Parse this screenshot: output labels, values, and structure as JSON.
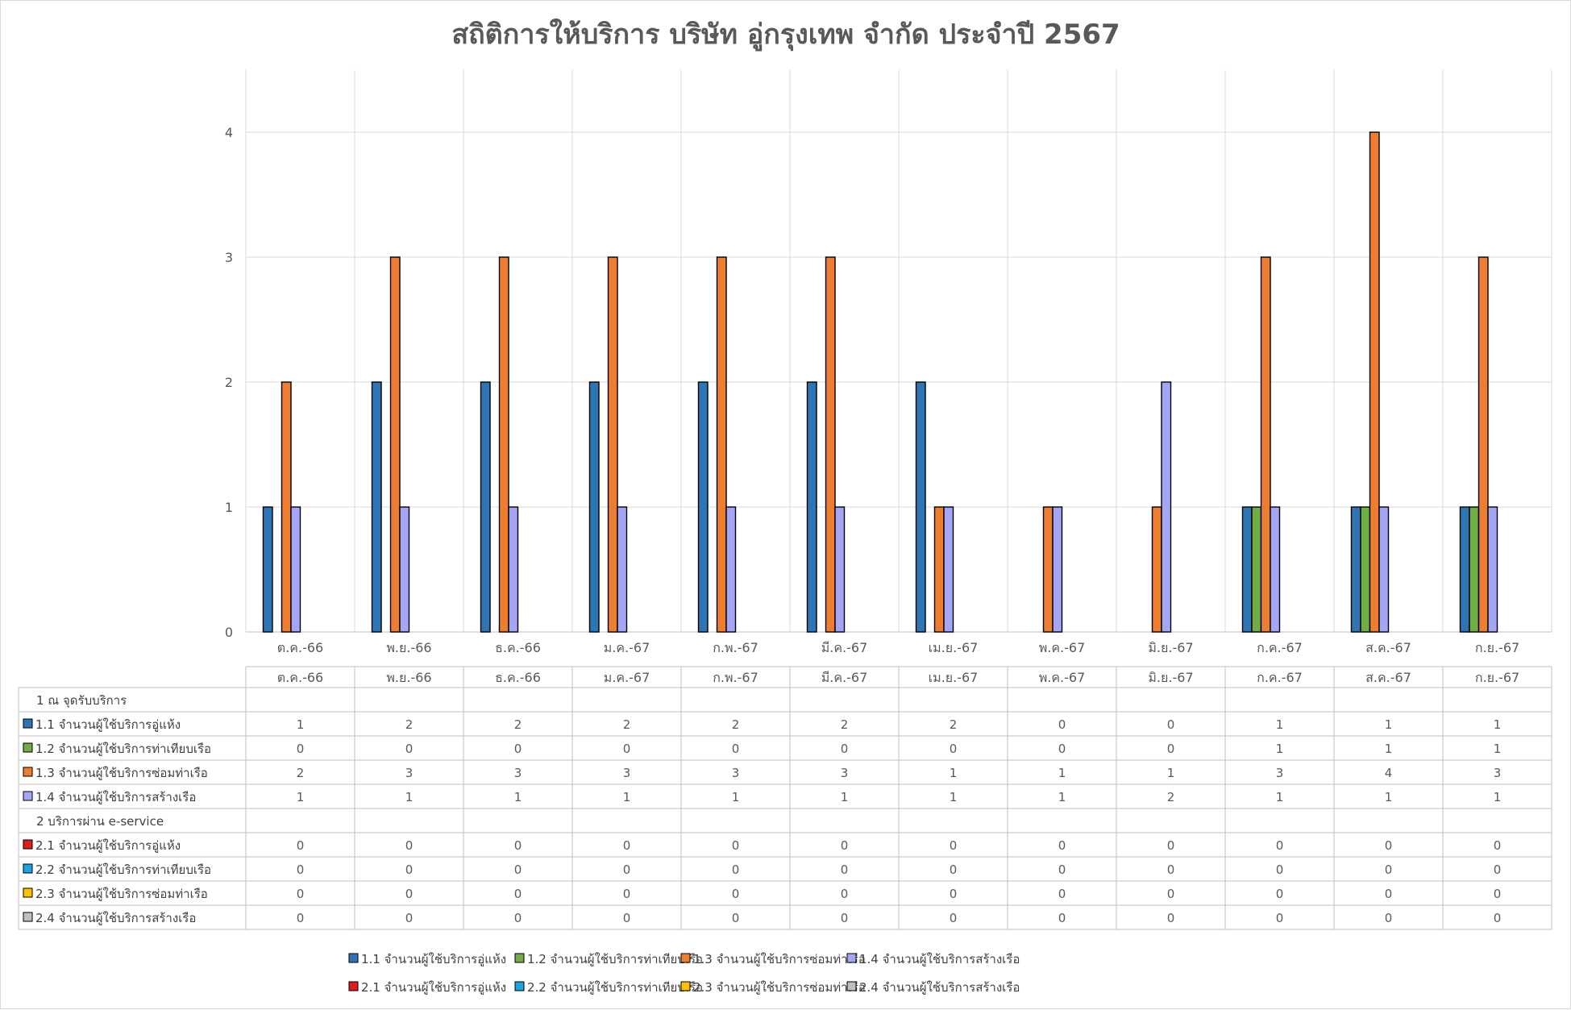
{
  "chart_data": {
    "type": "bar",
    "title": "สถิติการให้บริการ บริษัท อู่กรุงเทพ จำกัด ประจำปี 2567",
    "categories": [
      "ต.ค.-66",
      "พ.ย.-66",
      "ธ.ค.-66",
      "ม.ค.-67",
      "ก.พ.-67",
      "มี.ค.-67",
      "เม.ย.-67",
      "พ.ค.-67",
      "มิ.ย.-67",
      "ก.ค.-67",
      "ส.ค.-67",
      "ก.ย.-67"
    ],
    "ylim": [
      0,
      4.5
    ],
    "yticks": [
      0,
      1,
      2,
      3,
      4
    ],
    "grid": true,
    "legend_position": "bottom",
    "groups": [
      {
        "label": "1 ณ จุดรับบริการ",
        "series_index": [
          0,
          1,
          2,
          3
        ]
      },
      {
        "label": "2 บริการผ่าน e-service",
        "series_index": [
          4,
          5,
          6,
          7
        ]
      }
    ],
    "series": [
      {
        "name": "1.1 จำนวนผู้ใช้บริการอู่แห้ง",
        "color": "#2e75b6",
        "values": [
          1,
          2,
          2,
          2,
          2,
          2,
          2,
          0,
          0,
          1,
          1,
          1
        ]
      },
      {
        "name": "1.2 จำนวนผู้ใช้บริการท่าเทียบเรือ",
        "color": "#70ad47",
        "values": [
          0,
          0,
          0,
          0,
          0,
          0,
          0,
          0,
          0,
          1,
          1,
          1
        ]
      },
      {
        "name": "1.3 จำนวนผู้ใช้บริการซ่อมท่าเรือ",
        "color": "#ed7d31",
        "values": [
          2,
          3,
          3,
          3,
          3,
          3,
          1,
          1,
          1,
          3,
          4,
          3
        ]
      },
      {
        "name": "1.4 จำนวนผู้ใช้บริการสร้างเรือ",
        "color": "#a5a5f5",
        "values": [
          1,
          1,
          1,
          1,
          1,
          1,
          1,
          1,
          2,
          1,
          1,
          1
        ]
      },
      {
        "name": "2.1 จำนวนผู้ใช้บริการอู่แห้ง",
        "color": "#e31a1c",
        "values": [
          0,
          0,
          0,
          0,
          0,
          0,
          0,
          0,
          0,
          0,
          0,
          0
        ]
      },
      {
        "name": "2.2 จำนวนผู้ใช้บริการท่าเทียบเรือ",
        "color": "#1fa2e0",
        "values": [
          0,
          0,
          0,
          0,
          0,
          0,
          0,
          0,
          0,
          0,
          0,
          0
        ]
      },
      {
        "name": "2.3 จำนวนผู้ใช้บริการซ่อมท่าเรือ",
        "color": "#ffc000",
        "values": [
          0,
          0,
          0,
          0,
          0,
          0,
          0,
          0,
          0,
          0,
          0,
          0
        ]
      },
      {
        "name": "2.4 จำนวนผู้ใช้บริการสร้างเรือ",
        "color": "#bfbfbf",
        "values": [
          0,
          0,
          0,
          0,
          0,
          0,
          0,
          0,
          0,
          0,
          0,
          0
        ]
      }
    ]
  }
}
